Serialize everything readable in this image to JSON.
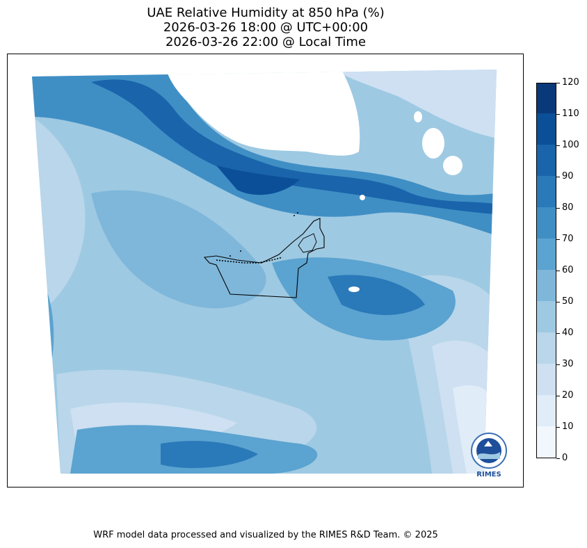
{
  "title": {
    "line1": "UAE Relative Humidity at 850 hPa (%)",
    "line2": "2026-03-26 18:00 @ UTC+00:00",
    "line3": "2026-03-26 22:00 @ Local Time"
  },
  "colorbar": {
    "min": 0,
    "max": 120,
    "step": 10,
    "tick_labels": [
      "0",
      "10",
      "20",
      "30",
      "40",
      "50",
      "60",
      "70",
      "80",
      "90",
      "100",
      "110",
      "120"
    ],
    "colors": [
      "#f1f7fd",
      "#e0ecf8",
      "#cee0f2",
      "#b9d6ea",
      "#9ec9e2",
      "#7fb7da",
      "#5ba3d0",
      "#3f8fc5",
      "#2a79b9",
      "#1a64ab",
      "#0b4f98",
      "#0a3979"
    ]
  },
  "map": {
    "boundary_color": "#000000",
    "missing_color": "#ffffff"
  },
  "logo": {
    "text": "RIMES",
    "icon": "rimes-logo-icon"
  },
  "footer": "WRF model data processed and visualized by the RIMES R&D Team. © 2025"
}
